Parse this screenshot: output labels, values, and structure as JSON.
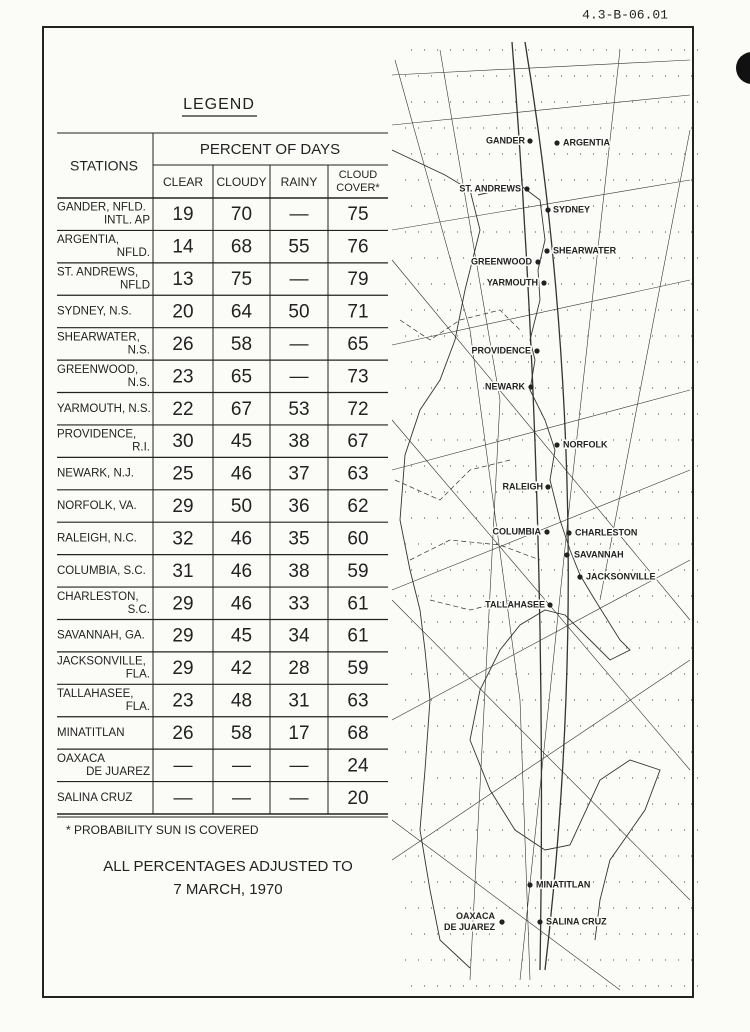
{
  "doc_id": "4.3-B-06.01",
  "legend_title": "LEGEND",
  "table": {
    "station_header": "STATIONS",
    "group_header": "PERCENT OF DAYS",
    "columns": [
      "CLEAR",
      "CLOUDY",
      "RAINY",
      [
        "CLOUD",
        "COVER*"
      ]
    ],
    "rows": [
      {
        "station": [
          "GANDER, NFLD.",
          "INTL. AP"
        ],
        "values": [
          19,
          70,
          "—",
          75
        ]
      },
      {
        "station": [
          "ARGENTIA,",
          "NFLD."
        ],
        "values": [
          14,
          68,
          55,
          76
        ]
      },
      {
        "station": [
          "ST. ANDREWS,",
          "NFLD"
        ],
        "values": [
          13,
          75,
          "—",
          79
        ]
      },
      {
        "station": [
          "SYDNEY, N.S."
        ],
        "values": [
          20,
          64,
          50,
          71
        ]
      },
      {
        "station": [
          "SHEARWATER,",
          "N.S."
        ],
        "values": [
          26,
          58,
          "—",
          65
        ]
      },
      {
        "station": [
          "GREENWOOD,",
          "N.S."
        ],
        "values": [
          23,
          65,
          "—",
          73
        ]
      },
      {
        "station": [
          "YARMOUTH, N.S."
        ],
        "values": [
          22,
          67,
          53,
          72
        ]
      },
      {
        "station": [
          "PROVIDENCE,",
          "R.I."
        ],
        "values": [
          30,
          45,
          38,
          67
        ]
      },
      {
        "station": [
          "NEWARK, N.J."
        ],
        "values": [
          25,
          46,
          37,
          63
        ]
      },
      {
        "station": [
          "NORFOLK, VA."
        ],
        "values": [
          29,
          50,
          36,
          62
        ]
      },
      {
        "station": [
          "RALEIGH, N.C."
        ],
        "values": [
          32,
          46,
          35,
          60
        ]
      },
      {
        "station": [
          "COLUMBIA, S.C."
        ],
        "values": [
          31,
          46,
          38,
          59
        ]
      },
      {
        "station": [
          "CHARLESTON,",
          "S.C."
        ],
        "values": [
          29,
          46,
          33,
          61
        ]
      },
      {
        "station": [
          "SAVANNAH, GA."
        ],
        "values": [
          29,
          45,
          34,
          61
        ]
      },
      {
        "station": [
          "JACKSONVILLE,",
          "FLA."
        ],
        "values": [
          29,
          42,
          28,
          59
        ]
      },
      {
        "station": [
          "TALLAHASEE,",
          "FLA."
        ],
        "values": [
          23,
          48,
          31,
          63
        ]
      },
      {
        "station": [
          "MINATITLAN"
        ],
        "values": [
          26,
          58,
          17,
          68
        ]
      },
      {
        "station": [
          "OAXACA",
          "DE JUAREZ"
        ],
        "values": [
          "—",
          "—",
          "—",
          24
        ]
      },
      {
        "station": [
          "SALINA CRUZ"
        ],
        "values": [
          "—",
          "—",
          "—",
          20
        ]
      }
    ]
  },
  "footnote": "* PROBABILITY SUN IS COVERED",
  "note": [
    "ALL PERCENTAGES ADJUSTED TO",
    "7 MARCH, 1970"
  ],
  "map_labels": [
    [
      "GANDER"
    ],
    [
      "ARGENTIA"
    ],
    [
      "ST. ANDREWS"
    ],
    [
      "SYDNEY"
    ],
    [
      "SHEARWATER"
    ],
    [
      "GREENWOOD"
    ],
    [
      "YARMOUTH"
    ],
    [
      "PROVIDENCE"
    ],
    [
      "NEWARK"
    ],
    [
      "NORFOLK"
    ],
    [
      "RALEIGH"
    ],
    [
      "COLUMBIA"
    ],
    [
      "CHARLESTON"
    ],
    [
      "SAVANNAH"
    ],
    [
      "JACKSONVILLE"
    ],
    [
      "TALLAHASEE"
    ],
    [
      "MINATITLAN"
    ],
    [
      "OAXACA",
      "DE JUAREZ"
    ],
    [
      "SALINA CRUZ"
    ]
  ]
}
